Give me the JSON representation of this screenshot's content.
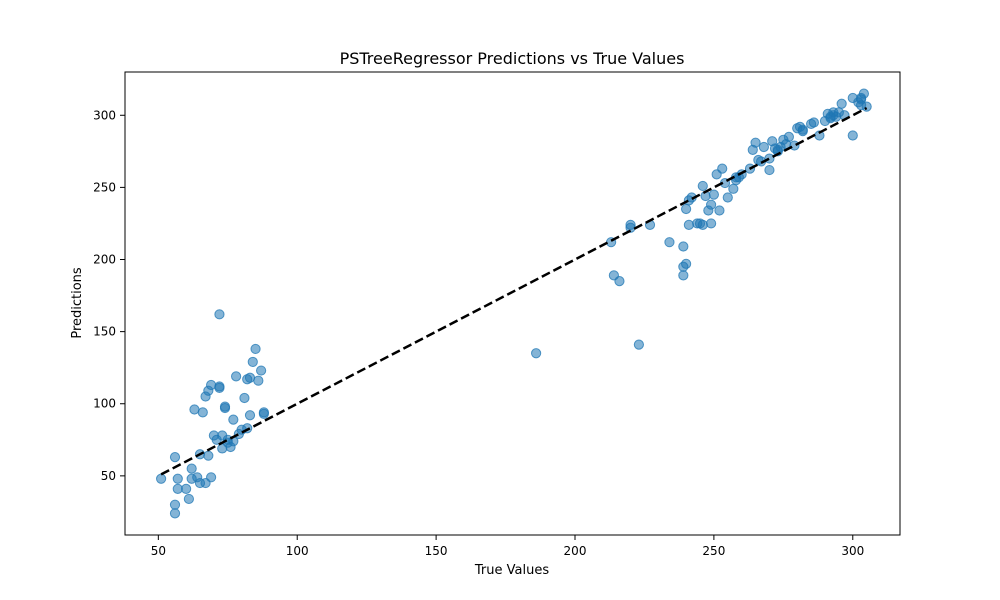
{
  "chart_data": {
    "type": "scatter",
    "title": "PSTreeRegressor Predictions vs True Values",
    "xlabel": "True Values",
    "ylabel": "Predictions",
    "xlim": [
      38,
      317
    ],
    "ylim": [
      9,
      330
    ],
    "xticks": [
      50,
      100,
      150,
      200,
      250,
      300
    ],
    "yticks": [
      50,
      100,
      150,
      200,
      250,
      300
    ],
    "grid": false,
    "legend": "none",
    "point_color": "#1f77b4",
    "point_alpha": 0.55,
    "reference_line": {
      "from": [
        51,
        51
      ],
      "to": [
        305,
        305
      ],
      "style": "dashed",
      "color": "#000000"
    },
    "x": [
      51,
      56,
      56,
      56,
      57,
      57,
      60,
      61,
      62,
      62,
      63,
      64,
      65,
      65,
      66,
      67,
      67,
      68,
      68,
      69,
      69,
      70,
      71,
      72,
      72,
      72,
      73,
      73,
      74,
      74,
      75,
      75,
      76,
      77,
      77,
      78,
      79,
      80,
      81,
      82,
      82,
      83,
      83,
      84,
      85,
      86,
      87,
      88,
      88,
      186,
      213,
      214,
      216,
      220,
      220,
      223,
      227,
      234,
      239,
      239,
      239,
      240,
      240,
      241,
      241,
      242,
      244,
      245,
      246,
      246,
      247,
      248,
      249,
      249,
      250,
      251,
      252,
      253,
      254,
      255,
      257,
      258,
      258,
      259,
      260,
      263,
      264,
      265,
      266,
      267,
      268,
      270,
      270,
      271,
      272,
      273,
      273,
      274,
      275,
      276,
      277,
      279,
      280,
      281,
      282,
      282,
      285,
      286,
      288,
      290,
      291,
      292,
      292,
      293,
      293,
      294,
      295,
      296,
      297,
      300,
      300,
      302,
      303,
      303,
      303,
      304,
      305
    ],
    "y": [
      48,
      63,
      24,
      30,
      41,
      48,
      41,
      34,
      48,
      55,
      96,
      49,
      45,
      65,
      94,
      45,
      105,
      64,
      109,
      113,
      49,
      78,
      75,
      162,
      112,
      111,
      78,
      69,
      98,
      97,
      73,
      75,
      70,
      74,
      89,
      119,
      79,
      82,
      104,
      83,
      117,
      118,
      92,
      129,
      138,
      116,
      123,
      94,
      93,
      135,
      212,
      189,
      185,
      224,
      222,
      141,
      224,
      212,
      209,
      189,
      195,
      197,
      235,
      224,
      241,
      243,
      225,
      225,
      251,
      224,
      244,
      234,
      238,
      225,
      245,
      259,
      234,
      263,
      253,
      243,
      249,
      257,
      255,
      257,
      259,
      263,
      276,
      281,
      269,
      268,
      278,
      270,
      262,
      282,
      277,
      276,
      275,
      278,
      283,
      280,
      285,
      279,
      291,
      292,
      290,
      289,
      294,
      295,
      286,
      296,
      301,
      298,
      299,
      302,
      300,
      299,
      302,
      308,
      300,
      286,
      312,
      309,
      307,
      311,
      312,
      315,
      306
    ]
  }
}
